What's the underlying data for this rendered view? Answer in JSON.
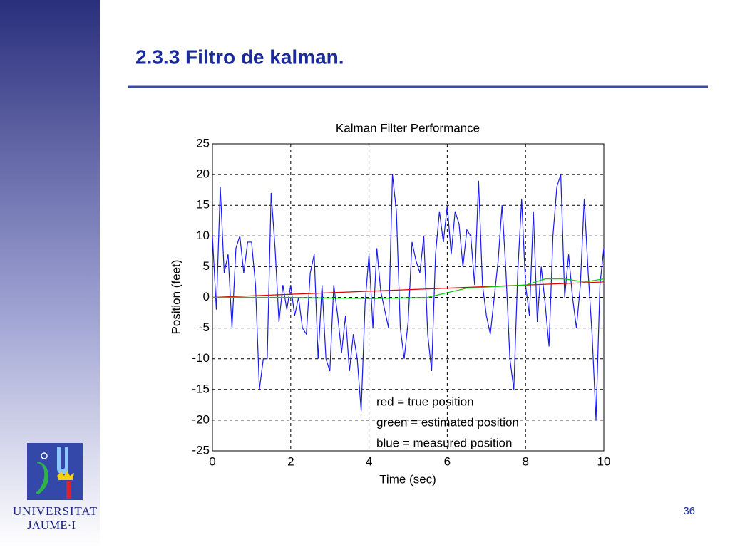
{
  "slide": {
    "title": "2.3.3 Filtro de kalman.",
    "page_number": "36",
    "logo_line1": "UNIVERSITAT",
    "logo_line2": "JAUME·I"
  },
  "chart_data": {
    "type": "line",
    "title": "Kalman Filter Performance",
    "x_label": "Time (sec)",
    "y_label": "Position (feet)",
    "xlim": [
      0,
      10
    ],
    "xticks": [
      0,
      2,
      4,
      6,
      8,
      10
    ],
    "ylim": [
      -25,
      25
    ],
    "yticks": [
      -25,
      -20,
      -15,
      -10,
      -5,
      0,
      5,
      10,
      15,
      20,
      25
    ],
    "grid": true,
    "series": [
      {
        "name": "red = true position",
        "color": "#e00000",
        "x": [
          0,
          10
        ],
        "values": [
          0,
          2.5
        ]
      },
      {
        "name": "green = estimated position",
        "color": "#00d000",
        "x": [
          0,
          2,
          4,
          5.5,
          6.5,
          8,
          8.5,
          9,
          9.5,
          10
        ],
        "values": [
          0,
          0,
          -0.2,
          0,
          1.5,
          2,
          3,
          3,
          2.5,
          3
        ]
      },
      {
        "name": "blue = measured position",
        "color": "#1a1aee",
        "x": [
          0,
          0.1,
          0.2,
          0.3,
          0.4,
          0.5,
          0.6,
          0.7,
          0.8,
          0.9,
          1,
          1.1,
          1.2,
          1.3,
          1.4,
          1.5,
          1.6,
          1.7,
          1.8,
          1.9,
          2,
          2.1,
          2.2,
          2.3,
          2.4,
          2.5,
          2.6,
          2.7,
          2.8,
          2.9,
          3,
          3.1,
          3.2,
          3.3,
          3.4,
          3.5,
          3.6,
          3.7,
          3.8,
          3.9,
          4,
          4.1,
          4.2,
          4.3,
          4.4,
          4.5,
          4.6,
          4.7,
          4.8,
          4.9,
          5,
          5.1,
          5.2,
          5.3,
          5.4,
          5.5,
          5.6,
          5.7,
          5.8,
          5.9,
          6,
          6.1,
          6.2,
          6.3,
          6.4,
          6.5,
          6.6,
          6.7,
          6.8,
          6.9,
          7,
          7.1,
          7.2,
          7.3,
          7.4,
          7.5,
          7.6,
          7.7,
          7.8,
          7.9,
          8,
          8.1,
          8.2,
          8.3,
          8.4,
          8.5,
          8.6,
          8.7,
          8.8,
          8.9,
          9,
          9.1,
          9.2,
          9.3,
          9.4,
          9.5,
          9.6,
          9.7,
          9.8,
          9.9,
          10
        ],
        "values": [
          10,
          -2,
          18,
          4,
          7,
          -5,
          8,
          10,
          4,
          9,
          9,
          2,
          -15,
          -10,
          -10,
          17,
          8,
          -4,
          2,
          -2,
          2,
          -3,
          0,
          -5,
          -6,
          4,
          7,
          -10,
          2,
          -10,
          -12,
          2,
          -3,
          -9,
          -3,
          -12,
          -6,
          -10,
          -18.5,
          -1,
          7,
          -5,
          8,
          1,
          -2,
          -5,
          20,
          14,
          -5,
          -10,
          -4,
          9,
          6,
          4,
          10,
          -6,
          -12,
          7,
          14,
          9,
          15,
          7,
          14,
          12,
          5,
          11,
          10,
          2,
          19,
          2,
          -3,
          -6,
          0,
          6,
          15,
          4,
          -10,
          -15,
          4,
          16,
          2,
          -3,
          14,
          -4,
          5,
          -1,
          -8,
          10,
          18,
          20,
          0,
          7,
          0,
          -5,
          2,
          16,
          4,
          -6,
          -20,
          2,
          8
        ]
      }
    ]
  }
}
